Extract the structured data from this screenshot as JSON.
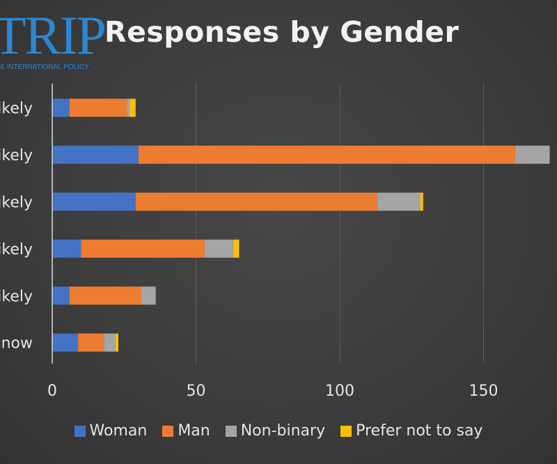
{
  "logo": {
    "word": "TRIP",
    "subtitle": "& INTERNATIONAL POLICY"
  },
  "chart_data": {
    "type": "bar",
    "orientation": "horizontal",
    "stacked": true,
    "title": "Responses by Gender",
    "xlabel": "",
    "ylabel": "",
    "xlim": [
      0,
      175
    ],
    "xticks": [
      0,
      50,
      100,
      150
    ],
    "grid": true,
    "legend_position": "bottom",
    "categories": [
      "ikely",
      "ikely",
      "ikely",
      "ikely",
      "ikely",
      "now"
    ],
    "series": [
      {
        "name": "Woman",
        "color": "#4472c4",
        "values": [
          6,
          30,
          29,
          10,
          6,
          9
        ]
      },
      {
        "name": "Man",
        "color": "#ed7d31",
        "values": [
          20,
          131,
          84,
          43,
          25,
          9
        ]
      },
      {
        "name": "Non-binary",
        "color": "#a5a5a5",
        "values": [
          1,
          12,
          15,
          10,
          5,
          4
        ]
      },
      {
        "name": "Prefer not to say",
        "color": "#ffc000",
        "values": [
          2,
          0,
          1,
          2,
          0,
          1
        ]
      }
    ]
  }
}
